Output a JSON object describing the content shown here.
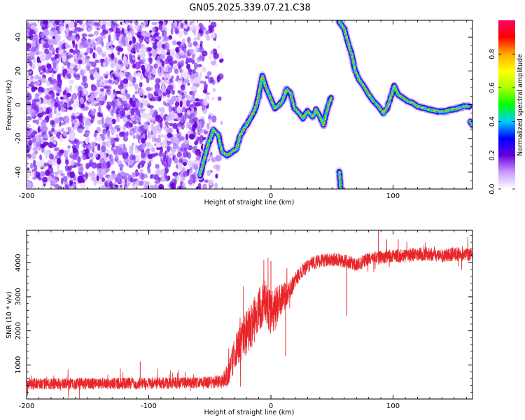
{
  "figure_title": "GN05.2025.339.07.21.C38",
  "colors": {
    "speckle": "#7a1cf0",
    "snr_line": "#e8262a",
    "axis": "#000000"
  },
  "chart_data": [
    {
      "type": "heatmap",
      "title": "GN05.2025.339.07.21.C38",
      "xlabel": "Height of straight line (km)",
      "ylabel": "Frequency (Hz)",
      "xlim": [
        -200,
        165
      ],
      "ylim": [
        -50,
        50
      ],
      "x_ticks": [
        -200,
        -100,
        0,
        100
      ],
      "x_tick_labels": [
        "-200",
        "-100",
        "0",
        "100"
      ],
      "y_ticks": [
        -40,
        -20,
        0,
        20,
        40
      ],
      "y_tick_labels": [
        "-40",
        "-20",
        "0",
        "20",
        "40"
      ],
      "noise_region_x": [
        -200,
        -52
      ],
      "ridges": [
        {
          "name": "main-track",
          "points": [
            [
              -58,
              -42
            ],
            [
              -52,
              -25
            ],
            [
              -47,
              -15
            ],
            [
              -43,
              -18
            ],
            [
              -40,
              -28
            ],
            [
              -36,
              -30
            ],
            [
              -32,
              -28
            ],
            [
              -28,
              -26
            ],
            [
              -25,
              -18
            ],
            [
              -20,
              -12
            ],
            [
              -16,
              -7
            ],
            [
              -13,
              -3
            ],
            [
              -10,
              5
            ],
            [
              -7,
              17
            ],
            [
              -4,
              10
            ],
            [
              -1,
              5
            ],
            [
              3,
              -2
            ],
            [
              7,
              0
            ],
            [
              10,
              3
            ],
            [
              13,
              9
            ],
            [
              16,
              7
            ],
            [
              19,
              -2
            ],
            [
              23,
              -5
            ],
            [
              26,
              -8
            ],
            [
              30,
              -4
            ],
            [
              34,
              -7
            ],
            [
              37,
              -3
            ],
            [
              40,
              -7
            ],
            [
              43,
              -12
            ],
            [
              46,
              -3
            ],
            [
              49,
              4
            ]
          ]
        },
        {
          "name": "descending-track",
          "points": [
            [
              56,
              49
            ],
            [
              60,
              45
            ],
            [
              63,
              37
            ],
            [
              66,
              30
            ],
            [
              69,
              20
            ],
            [
              72,
              15
            ],
            [
              76,
              11
            ],
            [
              80,
              6
            ],
            [
              84,
              2
            ],
            [
              88,
              -1
            ],
            [
              92,
              -5
            ],
            [
              95,
              -2
            ],
            [
              98,
              4
            ],
            [
              101,
              11
            ],
            [
              104,
              6
            ],
            [
              108,
              4
            ],
            [
              112,
              2
            ],
            [
              116,
              1
            ],
            [
              120,
              -1
            ],
            [
              125,
              -2
            ],
            [
              130,
              -3
            ],
            [
              136,
              -4
            ],
            [
              142,
              -4
            ],
            [
              148,
              -3
            ],
            [
              154,
              -2
            ],
            [
              158,
              -1
            ],
            [
              162,
              -1
            ]
          ]
        },
        {
          "name": "low-blob",
          "points": [
            [
              56,
              -40
            ],
            [
              57,
              -50
            ]
          ]
        },
        {
          "name": "edge-blob",
          "points": [
            [
              163,
              -10
            ],
            [
              165,
              -12
            ]
          ]
        }
      ],
      "colorbar": {
        "label": "Normalized spectral amplitude",
        "range": [
          0,
          1
        ],
        "ticks": [
          0.0,
          0.2,
          0.4,
          0.6,
          0.8
        ],
        "tick_labels": [
          "0.0",
          "0.2",
          "0.4",
          "0.6",
          "0.8"
        ],
        "colors": [
          "#ffffff",
          "#cc99ff",
          "#6600dd",
          "#0000ff",
          "#00ccff",
          "#00ff00",
          "#aaff00",
          "#ffff00",
          "#ffaa00",
          "#ff0000",
          "#ff0066"
        ]
      }
    },
    {
      "type": "line",
      "xlabel": "Height of straight line (km)",
      "ylabel": "SNR (10 * v/v)",
      "xlim": [
        -200,
        165
      ],
      "ylim": [
        0,
        4950
      ],
      "x_ticks": [
        -200,
        -100,
        0,
        100
      ],
      "x_tick_labels": [
        "-200",
        "-100",
        "0",
        "100"
      ],
      "y_ticks": [
        1000,
        2000,
        3000,
        4000
      ],
      "y_tick_labels": [
        "1000",
        "2000",
        "3000",
        "4000"
      ],
      "series": [
        {
          "name": "SNR",
          "x": [
            -200,
            -150,
            -100,
            -70,
            -50,
            -40,
            -35,
            -30,
            -25,
            -20,
            -15,
            -10,
            -5,
            0,
            5,
            10,
            15,
            20,
            25,
            30,
            35,
            40,
            50,
            60,
            70,
            80,
            90,
            100,
            110,
            120,
            130,
            140,
            150,
            165
          ],
          "mean": [
            450,
            450,
            460,
            470,
            490,
            520,
            700,
            1300,
            1650,
            1950,
            2200,
            2600,
            2900,
            2500,
            2700,
            3000,
            3150,
            3500,
            3750,
            3900,
            4000,
            4050,
            4100,
            4050,
            3950,
            4100,
            4150,
            4200,
            4200,
            4250,
            4250,
            4200,
            4250,
            4250
          ],
          "noise": [
            170,
            170,
            170,
            170,
            180,
            200,
            350,
            500,
            550,
            650,
            650,
            700,
            600,
            650,
            600,
            450,
            300,
            250,
            200,
            200,
            200,
            200,
            200,
            200,
            200,
            200,
            200,
            200,
            200,
            200,
            200,
            200,
            200,
            200
          ]
        }
      ],
      "spikes": [
        {
          "x": -107,
          "y": 1100
        },
        {
          "x": 0,
          "y": 4050
        },
        {
          "x": 12,
          "y": 1250
        },
        {
          "x": 62,
          "y": 2450
        },
        {
          "x": 88,
          "y": 4950
        }
      ]
    }
  ]
}
